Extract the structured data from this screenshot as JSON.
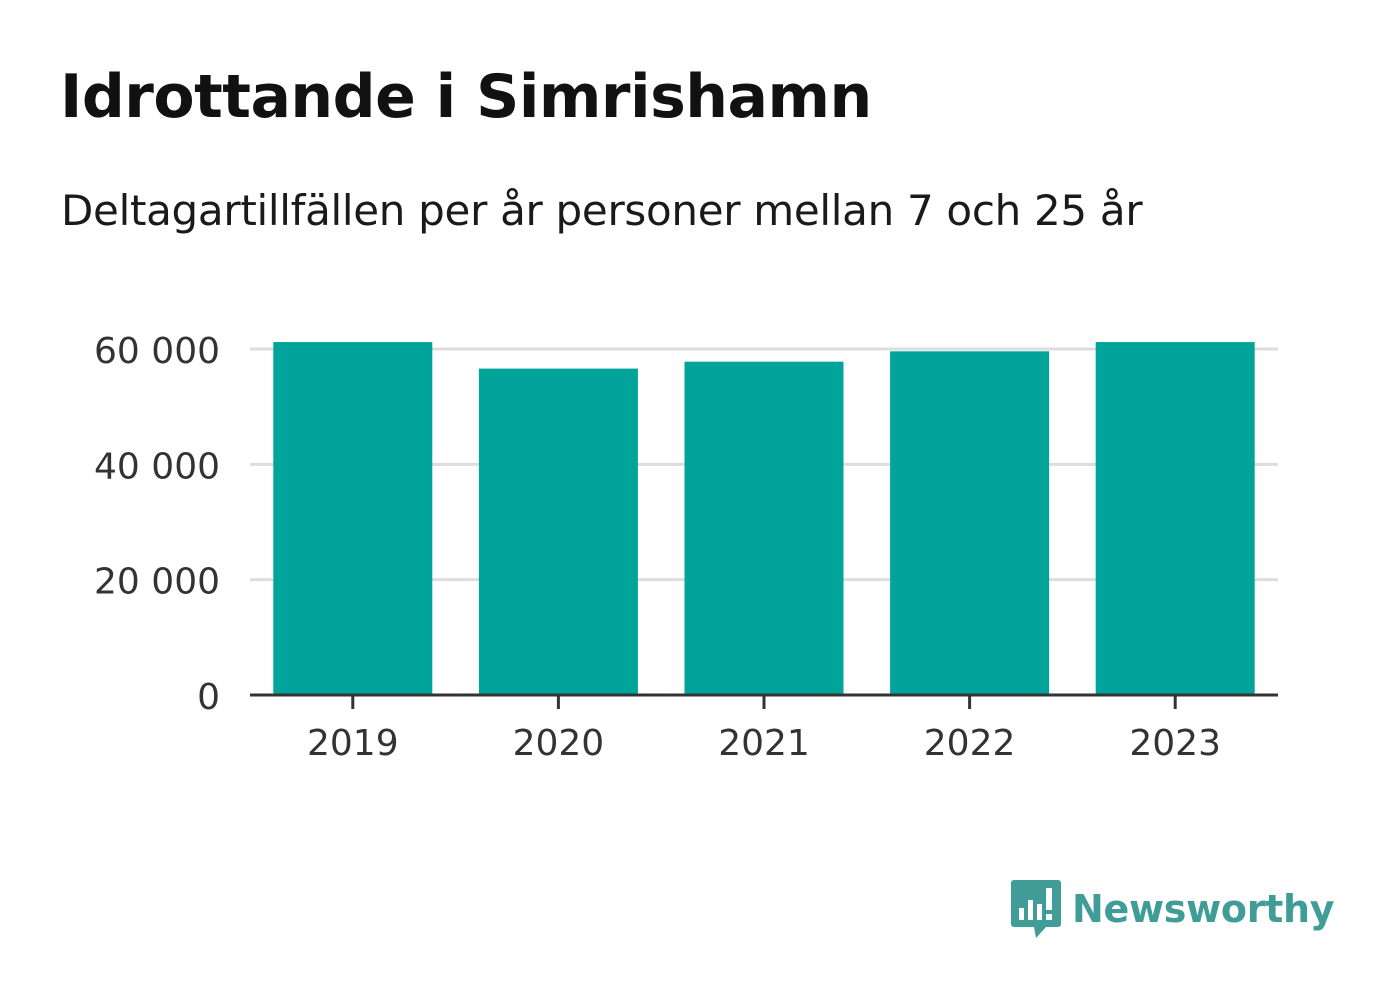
{
  "title": "Idrottande i Simrishamn",
  "subtitle": "Deltagartillfällen per år personer mellan 7 och 25 år",
  "brand": "Newsworthy",
  "colors": {
    "bar": "#00a49a",
    "brand": "#3f9c96",
    "grid": "#dddddd",
    "axis": "#333333"
  },
  "chart_data": {
    "type": "bar",
    "categories": [
      "2019",
      "2020",
      "2021",
      "2022",
      "2023"
    ],
    "values": [
      61200,
      56600,
      57800,
      59600,
      61200
    ],
    "ylim": [
      0,
      60000
    ],
    "yticks": [
      0,
      20000,
      40000,
      60000
    ],
    "ytick_labels": [
      "0",
      "20 000",
      "40 000",
      "60 000"
    ],
    "grid": true,
    "xlabel": "",
    "ylabel": ""
  }
}
